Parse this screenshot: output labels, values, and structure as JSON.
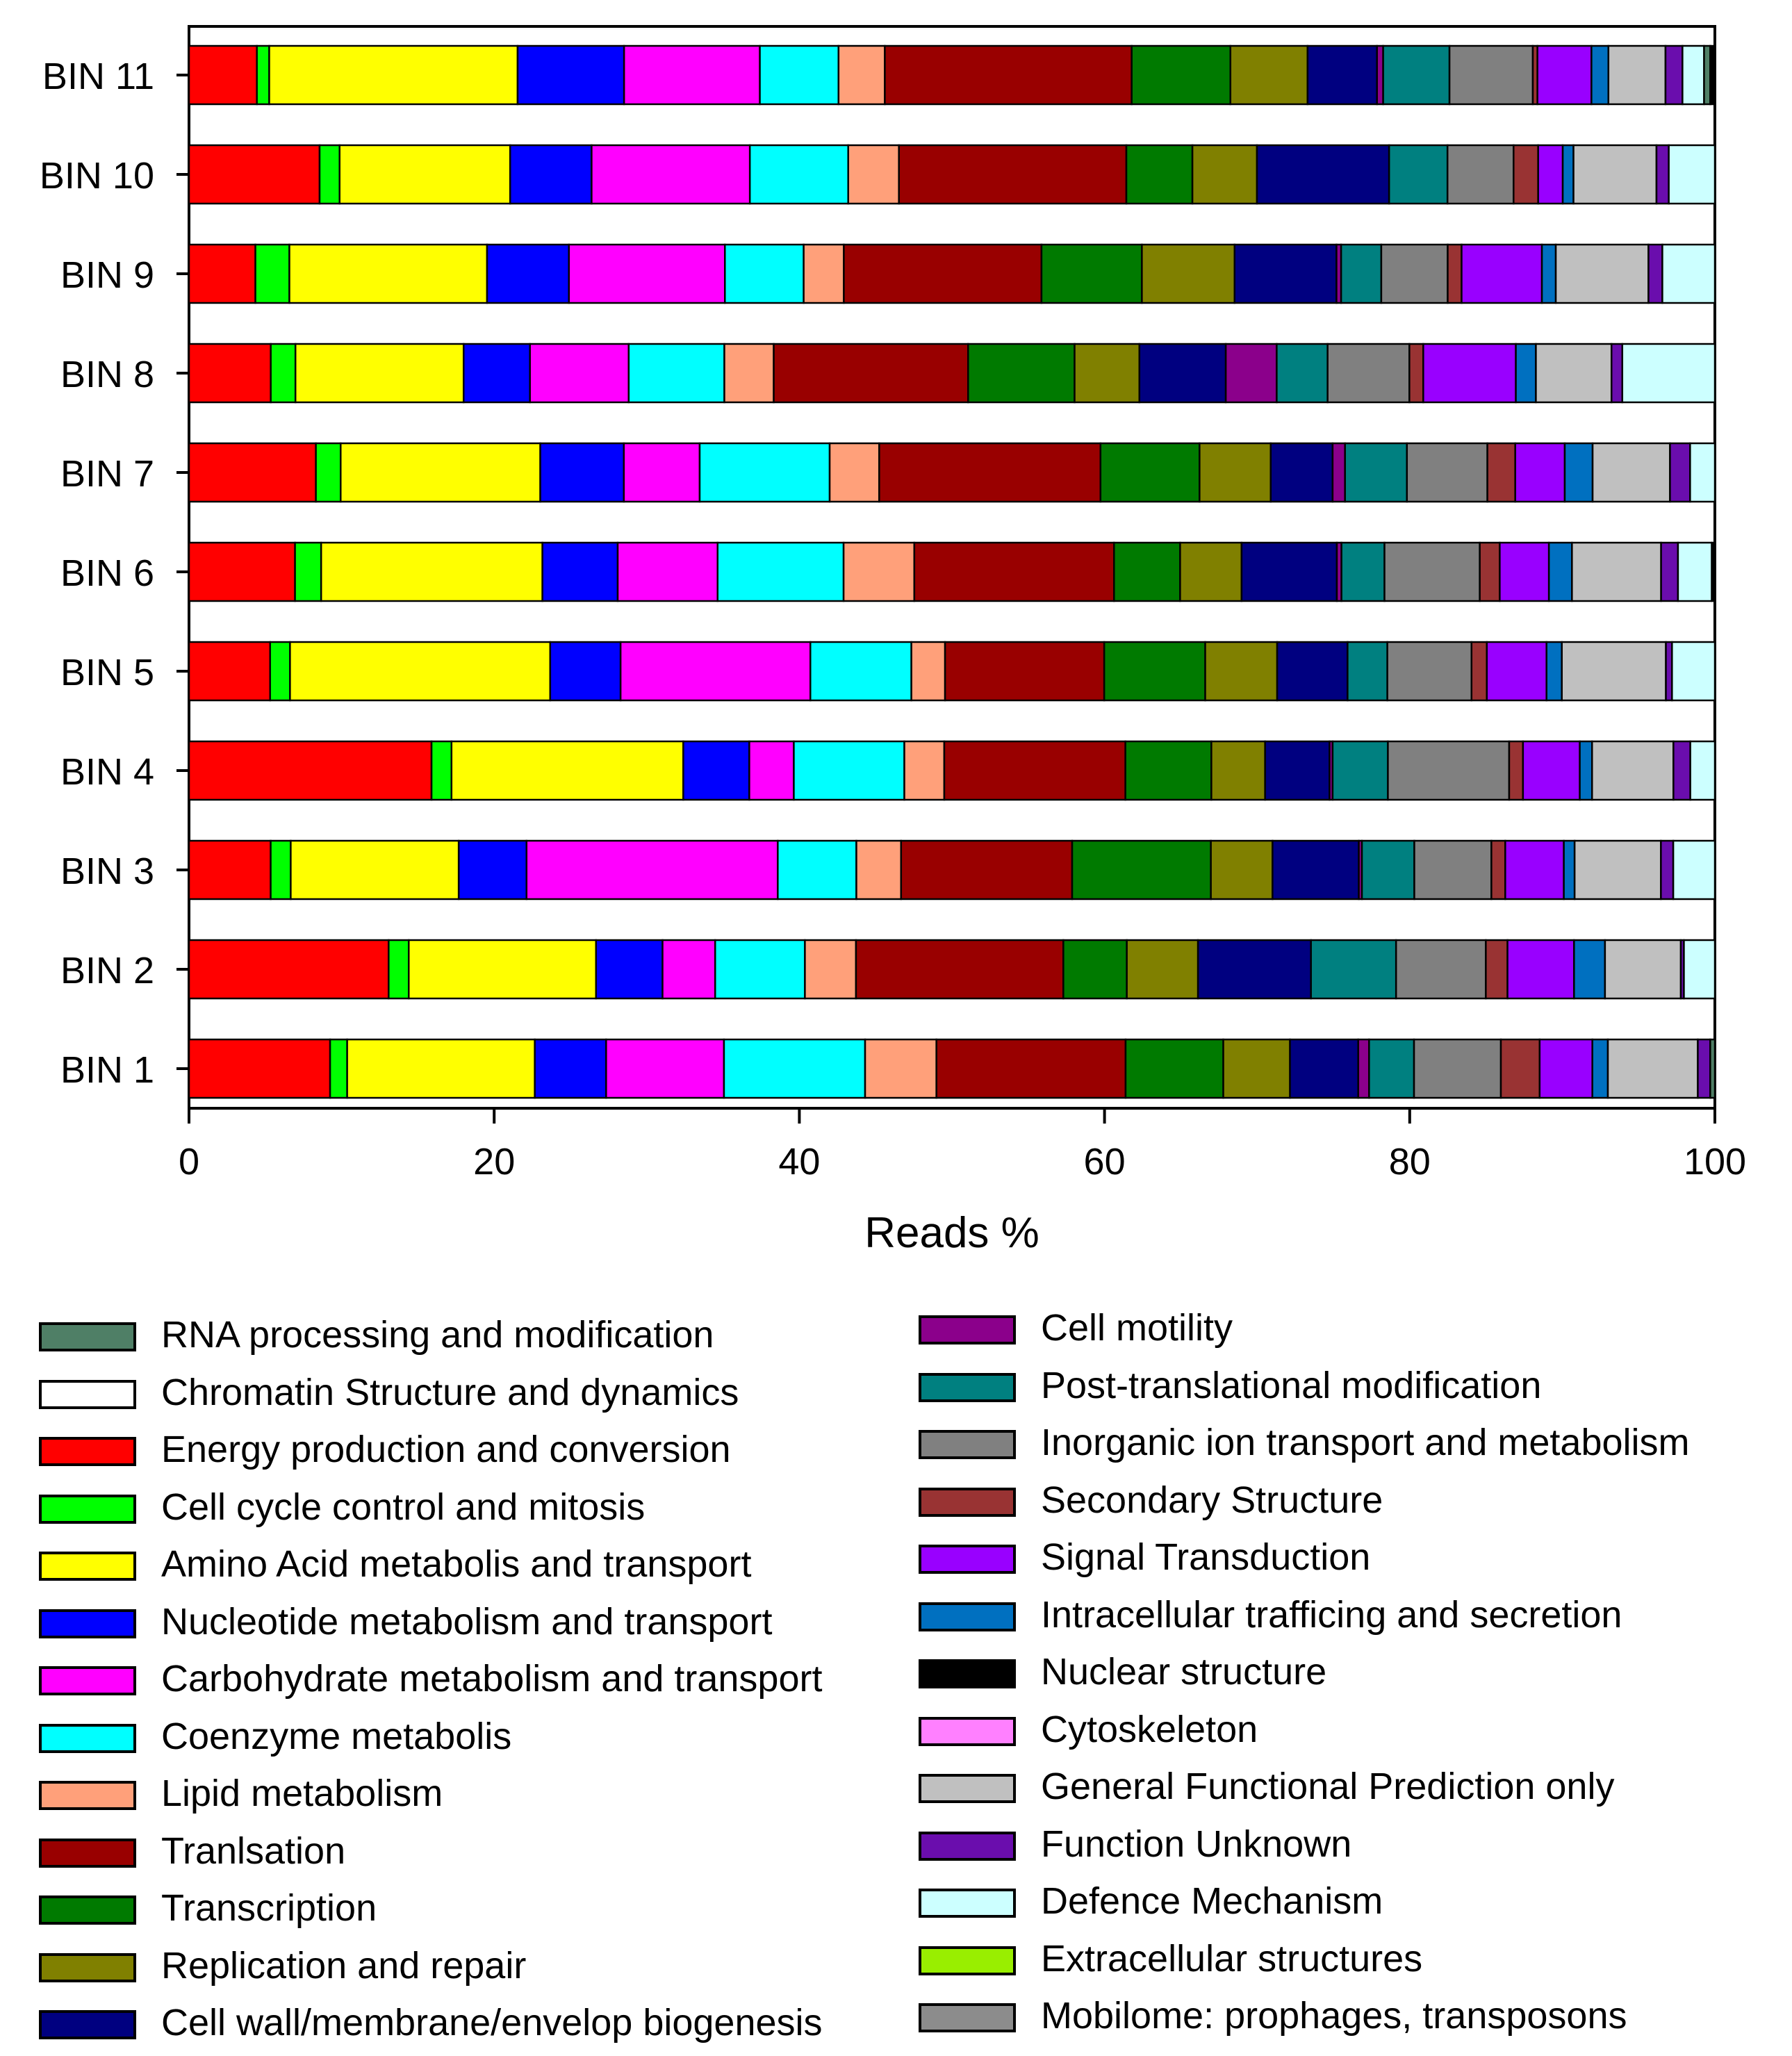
{
  "chart_data": {
    "type": "bar",
    "orientation": "horizontal",
    "stacked": true,
    "xlabel": "Reads %",
    "ylabel": "",
    "xlim": [
      0,
      100
    ],
    "xticks": [
      "0",
      "20",
      "40",
      "60",
      "80",
      "100"
    ],
    "categories": [
      "BIN 11",
      "BIN 10",
      "BIN 9",
      "BIN 8",
      "BIN 7",
      "BIN 6",
      "BIN 5",
      "BIN 4",
      "BIN 3",
      "BIN 2",
      "BIN 1"
    ],
    "series": [
      {
        "name": "Energy production and conversion",
        "color": "#ff0000",
        "values": [
          4.4,
          8.5,
          4.3,
          5.3,
          8.2,
          6.9,
          5.3,
          15.8,
          5.3,
          12.9,
          9.1
        ]
      },
      {
        "name": "Cell cycle control and mitosis",
        "color": "#00ff00",
        "values": [
          0.8,
          1.3,
          2.2,
          1.6,
          1.6,
          1.7,
          1.3,
          1.3,
          1.3,
          1.3,
          1.1
        ]
      },
      {
        "name": "Amino Acid metabolis and transport",
        "color": "#ffff00",
        "values": [
          16.1,
          11.1,
          12.8,
          10.9,
          12.9,
          14.4,
          17.0,
          15.1,
          10.9,
          12.1,
          12.1
        ]
      },
      {
        "name": "Nucleotide metabolism and transport",
        "color": "#0000ff",
        "values": [
          6.9,
          5.3,
          5.3,
          4.3,
          5.4,
          4.9,
          4.6,
          4.3,
          4.4,
          4.3,
          4.6
        ]
      },
      {
        "name": "Carbohydrate metabolism and transport",
        "color": "#ff00ff",
        "values": [
          8.8,
          10.3,
          10.1,
          6.4,
          4.9,
          6.5,
          12.4,
          2.9,
          16.3,
          3.4,
          7.6
        ]
      },
      {
        "name": "Coenzyme metabolis",
        "color": "#00ffff",
        "values": [
          5.1,
          6.4,
          5.1,
          6.2,
          8.4,
          8.2,
          6.6,
          7.2,
          5.1,
          5.8,
          9.1
        ]
      },
      {
        "name": "Lipid metabolism",
        "color": "#ffa07a",
        "values": [
          3.0,
          3.3,
          2.6,
          3.2,
          3.2,
          4.6,
          2.2,
          2.6,
          2.9,
          3.3,
          4.6
        ]
      },
      {
        "name": "Tranlsation",
        "color": "#990000",
        "values": [
          16.0,
          14.8,
          12.8,
          12.6,
          14.3,
          13.0,
          10.4,
          11.8,
          11.1,
          13.4,
          12.2
        ]
      },
      {
        "name": "Transcription",
        "color": "#007a00",
        "values": [
          6.4,
          4.3,
          6.5,
          6.9,
          6.4,
          4.3,
          6.6,
          5.6,
          9.0,
          4.1,
          6.3
        ]
      },
      {
        "name": "Replication and repair",
        "color": "#808000",
        "values": [
          5.0,
          4.2,
          6.0,
          4.2,
          4.6,
          4.0,
          4.7,
          3.5,
          4.0,
          4.6,
          4.3
        ]
      },
      {
        "name": "Cell wall/membrane/envelop biogenesis",
        "color": "#000080",
        "values": [
          4.5,
          8.6,
          6.6,
          5.6,
          4.0,
          6.2,
          4.6,
          4.2,
          5.6,
          7.3,
          4.4
        ]
      },
      {
        "name": "Cell motility",
        "color": "#8b008b",
        "values": [
          0.4,
          0,
          0.3,
          3.3,
          0.8,
          0.3,
          0,
          0.2,
          0.2,
          0,
          0.7
        ]
      },
      {
        "name": "Post-translational modification",
        "color": "#008080",
        "values": [
          4.3,
          3.8,
          2.6,
          3.3,
          4.0,
          2.8,
          2.6,
          3.6,
          3.4,
          5.5,
          2.9
        ]
      },
      {
        "name": "Inorganic ion transport and metabolism",
        "color": "#808080",
        "values": [
          5.4,
          4.3,
          4.3,
          5.3,
          5.2,
          6.2,
          5.5,
          7.9,
          5.0,
          5.8,
          5.6
        ]
      },
      {
        "name": "Secondary Structure",
        "color": "#993333",
        "values": [
          0.3,
          1.6,
          0.9,
          0.9,
          1.8,
          1.3,
          1.0,
          0.9,
          0.9,
          1.4,
          2.5
        ]
      },
      {
        "name": "Signal Transduction",
        "color": "#9900ff",
        "values": [
          3.5,
          1.6,
          5.2,
          6.0,
          3.2,
          3.2,
          3.9,
          3.7,
          3.8,
          4.3,
          3.4
        ]
      },
      {
        "name": "Intracellular trafficing and secretion",
        "color": "#0070c0",
        "values": [
          1.1,
          0.7,
          0.9,
          1.3,
          1.8,
          1.5,
          1.0,
          0.8,
          0.7,
          2.0,
          1.0
        ]
      },
      {
        "name": "General Functional Prediction only",
        "color": "#c0c0c0",
        "values": [
          3.7,
          5.4,
          6.0,
          4.9,
          5.0,
          5.8,
          6.8,
          5.3,
          5.6,
          4.9,
          5.8
        ]
      },
      {
        "name": "Function Unknown",
        "color": "#6a0dad",
        "values": [
          1.1,
          0.8,
          0.9,
          0.7,
          1.3,
          1.1,
          0.4,
          1.1,
          0.8,
          0.2,
          0.8
        ]
      },
      {
        "name": "Defence Mechanism",
        "color": "#ccffff",
        "values": [
          1.4,
          3.0,
          3.4,
          6.0,
          1.6,
          2.2,
          2.8,
          1.6,
          2.7,
          2.0,
          0
        ]
      },
      {
        "name": "RNA processing and modification",
        "color": "#4f7f66",
        "values": [
          0.4,
          0,
          0,
          0,
          0,
          0,
          0,
          0,
          0,
          0,
          0.3
        ]
      },
      {
        "name": "Nuclear structure",
        "color": "#000000",
        "values": [
          0.3,
          0,
          0,
          0,
          0,
          0.2,
          0,
          0,
          0,
          0,
          0
        ]
      }
    ],
    "legend_left": [
      {
        "label": "RNA processing and modification",
        "color": "#4f7f66"
      },
      {
        "label": "Chromatin Structure and dynamics",
        "color": "#ffffff"
      },
      {
        "label": "Energy production and conversion",
        "color": "#ff0000"
      },
      {
        "label": "Cell cycle control and mitosis",
        "color": "#00ff00"
      },
      {
        "label": "Amino Acid metabolis and transport",
        "color": "#ffff00"
      },
      {
        "label": "Nucleotide metabolism and transport",
        "color": "#0000ff"
      },
      {
        "label": "Carbohydrate metabolism and transport",
        "color": "#ff00ff"
      },
      {
        "label": "Coenzyme metabolis",
        "color": "#00ffff"
      },
      {
        "label": "Lipid metabolism",
        "color": "#ffa07a"
      },
      {
        "label": "Tranlsation",
        "color": "#990000"
      },
      {
        "label": "Transcription",
        "color": "#007a00"
      },
      {
        "label": "Replication and repair",
        "color": "#808000"
      },
      {
        "label": "Cell wall/membrane/envelop biogenesis",
        "color": "#000080"
      }
    ],
    "legend_right": [
      {
        "label": "Cell motility",
        "color": "#8b008b"
      },
      {
        "label": "Post-translational modification",
        "color": "#008080"
      },
      {
        "label": "Inorganic ion transport and metabolism",
        "color": "#808080"
      },
      {
        "label": "Secondary Structure",
        "color": "#993333"
      },
      {
        "label": "Signal Transduction",
        "color": "#9900ff"
      },
      {
        "label": "Intracellular trafficing and secretion",
        "color": "#0070c0"
      },
      {
        "label": "Nuclear structure",
        "color": "#000000"
      },
      {
        "label": "Cytoskeleton",
        "color": "#ff80ff"
      },
      {
        "label": "General Functional Prediction only",
        "color": "#c0c0c0"
      },
      {
        "label": "Function Unknown",
        "color": "#6a0dad"
      },
      {
        "label": "Defence Mechanism",
        "color": "#ccffff"
      },
      {
        "label": "Extracellular structures",
        "color": "#99ee00"
      },
      {
        "label": "Mobilome: prophages, transposons",
        "color": "#8c8c8c"
      }
    ]
  }
}
